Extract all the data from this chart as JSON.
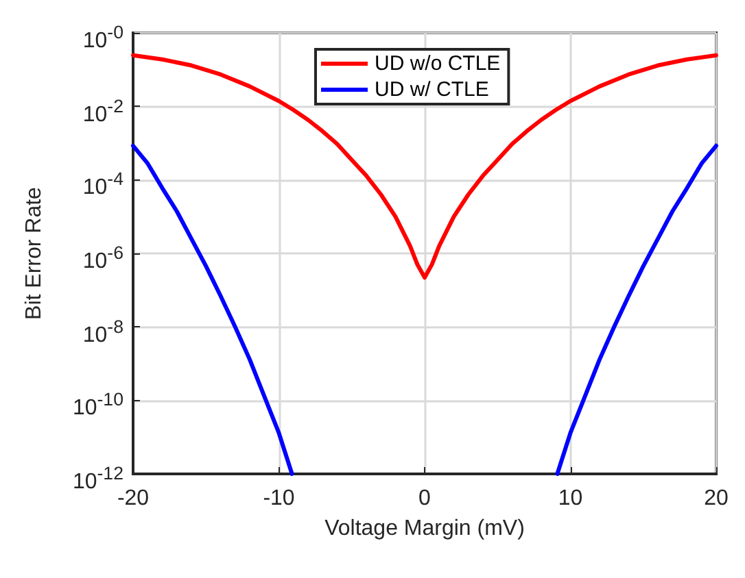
{
  "chart_data": {
    "type": "line",
    "xlabel": "Voltage Margin (mV)",
    "ylabel": "Bit Error Rate",
    "log": "y",
    "grid": true,
    "legend": "top",
    "marker": "none",
    "line_style": "solid",
    "xlim": [
      -20,
      20
    ],
    "xticks": [
      -20,
      -10,
      0,
      10,
      20
    ],
    "ylim": [
      1e-12,
      1
    ],
    "yticks": [
      {
        "value": 1e-12,
        "label": "10$^{-12}$"
      },
      {
        "value": 1e-10,
        "label": "10$^{-10}$"
      },
      {
        "value": 1e-08,
        "label": "10$^{-8}$"
      },
      {
        "value": 1e-06,
        "label": "10$^{-6}$"
      },
      {
        "value": 0.0001,
        "label": "10$^{-4}$"
      },
      {
        "value": 0.01,
        "label": "10$^{-2}$"
      },
      {
        "value": 1,
        "label": "10$^{-0}$"
      }
    ],
    "series": [
      {
        "name": "UD w/o CTLE",
        "color": "#ff0000",
        "x": [
          -20,
          -18,
          -16,
          -14,
          -12,
          -10,
          -9,
          -8,
          -7,
          -6,
          -5,
          -4,
          -3,
          -2,
          -1,
          -0.5,
          0,
          0.5,
          1,
          2,
          3,
          4,
          5,
          6,
          7,
          8,
          9,
          10,
          12,
          14,
          16,
          18,
          20
        ],
        "values": [
          0.245,
          0.19,
          0.13,
          0.074,
          0.035,
          0.014,
          0.008,
          0.0043,
          0.0021,
          0.00095,
          0.00035,
          0.00013,
          4e-05,
          1e-05,
          1.6e-06,
          5e-07,
          2.2e-07,
          5e-07,
          1.6e-06,
          1e-05,
          4e-05,
          0.00013,
          0.00035,
          0.00095,
          0.0021,
          0.0043,
          0.008,
          0.014,
          0.035,
          0.074,
          0.13,
          0.19,
          0.245
        ]
      },
      {
        "name": "UD w/ CTLE",
        "color": "#0000ff",
        "x": [
          -20,
          -19,
          -18,
          -17,
          -16,
          -15,
          -14,
          -13,
          -12,
          -11,
          -10,
          -9.1,
          null,
          9.1,
          10,
          11,
          12,
          13,
          14,
          15,
          16,
          17,
          18,
          19,
          20
        ],
        "values": [
          0.00085,
          0.00028,
          6e-05,
          1.4e-05,
          2.5e-06,
          4.5e-07,
          7e-08,
          1e-08,
          1.3e-09,
          1.3e-10,
          1.3e-11,
          1e-12,
          null,
          1e-12,
          1.3e-11,
          1.3e-10,
          1.3e-09,
          1e-08,
          7e-08,
          4.5e-07,
          2.5e-06,
          1.4e-05,
          6e-05,
          0.00028,
          0.00085
        ]
      }
    ]
  }
}
